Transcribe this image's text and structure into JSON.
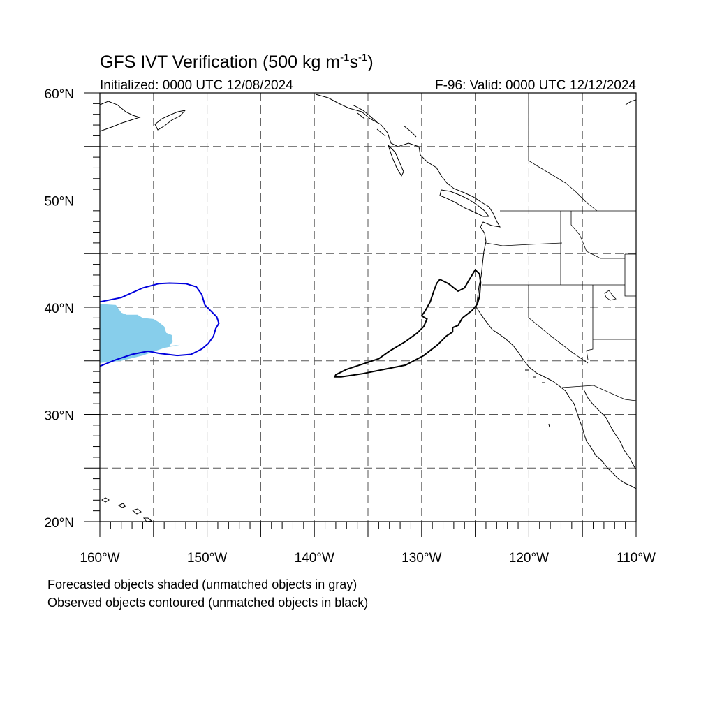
{
  "title": {
    "main": "GFS IVT Verification (500 kg m",
    "sup1": "-1",
    "mid": "s",
    "sup2": "-1",
    "end": ")"
  },
  "subtitle": {
    "left": "Initialized: 0000 UTC 12/08/2024",
    "right": "F-96: Valid: 0000 UTC 12/12/2024"
  },
  "axes": {
    "lon_range": [
      -160,
      -110
    ],
    "lat_range": [
      20,
      60
    ],
    "lon_labels": [
      {
        "lon": -160,
        "text": "160°W"
      },
      {
        "lon": -150,
        "text": "150°W"
      },
      {
        "lon": -140,
        "text": "140°W"
      },
      {
        "lon": -130,
        "text": "130°W"
      },
      {
        "lon": -120,
        "text": "120°W"
      },
      {
        "lon": -110,
        "text": "110°W"
      }
    ],
    "lat_labels": [
      {
        "lat": 60,
        "text": "60°N"
      },
      {
        "lat": 50,
        "text": "50°N"
      },
      {
        "lat": 40,
        "text": "40°N"
      },
      {
        "lat": 30,
        "text": "30°N"
      },
      {
        "lat": 20,
        "text": "20°N"
      }
    ],
    "grid_lons": [
      -155,
      -150,
      -145,
      -140,
      -135,
      -130,
      -125,
      -120,
      -115
    ],
    "grid_lats": [
      25,
      30,
      35,
      40,
      45,
      50,
      55
    ],
    "grid_style": "dashed"
  },
  "colors": {
    "forecast_fill": "#87ceeb",
    "observed_matched": "#0000dd",
    "observed_unmatched": "#000000",
    "coastline": "#000000",
    "grid": "#555555"
  },
  "objects": {
    "forecast_matched": [
      [
        [
          -160,
          40.3
        ],
        [
          -158.5,
          40.2
        ],
        [
          -158,
          39.5
        ],
        [
          -157.5,
          39.3
        ],
        [
          -156.5,
          39.3
        ],
        [
          -156,
          39
        ],
        [
          -155,
          38.9
        ],
        [
          -154.5,
          38.6
        ],
        [
          -154,
          38.2
        ],
        [
          -153.8,
          37.6
        ],
        [
          -153.3,
          37.4
        ],
        [
          -153.2,
          36.8
        ],
        [
          -153.5,
          36.4
        ],
        [
          -152.5,
          36.5
        ],
        [
          -154,
          36.2
        ],
        [
          -156,
          35.5
        ],
        [
          -158,
          35
        ],
        [
          -160,
          34.8
        ]
      ]
    ],
    "observed_matched": [
      [
        [
          -160,
          40.5
        ],
        [
          -158,
          40.9
        ],
        [
          -156,
          41.8
        ],
        [
          -154.5,
          42.2
        ],
        [
          -153.5,
          42.25
        ],
        [
          -152,
          42.2
        ],
        [
          -151,
          41.9
        ],
        [
          -150.5,
          41.2
        ],
        [
          -150.2,
          40.2
        ],
        [
          -149.6,
          39.6
        ],
        [
          -149.1,
          39.1
        ],
        [
          -148.9,
          38.5
        ],
        [
          -149.2,
          38.0
        ],
        [
          -149.4,
          37.3
        ],
        [
          -149.9,
          36.6
        ],
        [
          -150.5,
          36.1
        ],
        [
          -151.5,
          35.6
        ],
        [
          -152.8,
          35.5
        ],
        [
          -154.5,
          35.7
        ],
        [
          -155.5,
          35.9
        ],
        [
          -157,
          35.6
        ],
        [
          -158.5,
          35.1
        ],
        [
          -160,
          34.5
        ]
      ]
    ],
    "observed_unmatched": [
      [
        [
          -138,
          33.7
        ],
        [
          -137,
          34.2
        ],
        [
          -135.5,
          34.7
        ],
        [
          -134,
          35.2
        ],
        [
          -133,
          35.9
        ],
        [
          -131.5,
          36.8
        ],
        [
          -130.4,
          37.6
        ],
        [
          -129.8,
          38.2
        ],
        [
          -129.5,
          38.9
        ],
        [
          -130.0,
          39.2
        ],
        [
          -129.7,
          39.6
        ],
        [
          -129.2,
          40.5
        ],
        [
          -128.9,
          41.4
        ],
        [
          -128.6,
          42.2
        ],
        [
          -128.3,
          42.6
        ],
        [
          -127.5,
          42.2
        ],
        [
          -126.6,
          41.5
        ],
        [
          -126.0,
          41.8
        ],
        [
          -125.6,
          42.5
        ],
        [
          -125.0,
          43.5
        ],
        [
          -124.6,
          43.1
        ],
        [
          -124.5,
          42.3
        ],
        [
          -124.6,
          41.0
        ],
        [
          -124.8,
          40.3
        ],
        [
          -125.3,
          39.7
        ],
        [
          -126.2,
          39.0
        ],
        [
          -126.6,
          38.3
        ],
        [
          -127.1,
          38.1
        ],
        [
          -127.1,
          37.7
        ],
        [
          -127.7,
          37.3
        ],
        [
          -128.5,
          36.5
        ],
        [
          -129.8,
          35.5
        ],
        [
          -131.5,
          34.6
        ],
        [
          -133.5,
          34.2
        ],
        [
          -135.5,
          33.8
        ],
        [
          -137.5,
          33.5
        ],
        [
          -138.1,
          33.5
        ]
      ]
    ]
  },
  "notes": {
    "line1": "Forecasted objects shaded (unmatched objects in gray)",
    "line2": "Observed objects contoured (unmatched objects in black)"
  }
}
